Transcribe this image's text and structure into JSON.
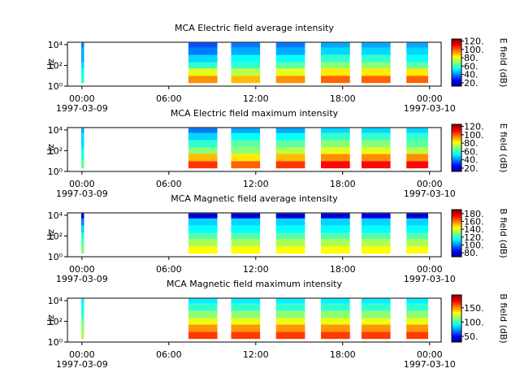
{
  "chart_data": [
    {
      "type": "spectrogram",
      "title": "MCA  Electric field average intensity",
      "ylabel": "Hz",
      "colorbar_label": "E field (dB)",
      "xlim": [
        -1,
        24.8
      ],
      "xticks": [
        {
          "value": 0,
          "label": "00:00"
        },
        {
          "value": 6,
          "label": "06:00"
        },
        {
          "value": 12,
          "label": "12:00"
        },
        {
          "value": 18,
          "label": "18:00"
        },
        {
          "value": 24,
          "label": "00:00"
        }
      ],
      "x_dates": [
        {
          "value": 0,
          "label": "1997-03-09"
        },
        {
          "value": 24,
          "label": "1997-03-10"
        }
      ],
      "log_y": true,
      "ylim": [
        1,
        17000
      ],
      "yticks": [
        {
          "value": 1,
          "label": "10⁰"
        },
        {
          "value": 100,
          "label": "10²"
        },
        {
          "value": 10000,
          "label": "10⁴"
        }
      ],
      "clim": [
        12,
        125
      ],
      "cticks": [
        {
          "value": 20,
          "label": "20."
        },
        {
          "value": 40,
          "label": "40."
        },
        {
          "value": 60,
          "label": "60."
        },
        {
          "value": 80,
          "label": "80."
        },
        {
          "value": 100,
          "label": "100."
        },
        {
          "value": 120,
          "label": "120."
        }
      ],
      "freq_edges": [
        2,
        10,
        50,
        200,
        1000,
        5000,
        15000
      ],
      "segments": [
        [
          -0.05,
          0.15
        ],
        [
          7.35,
          9.35
        ],
        [
          10.3,
          12.3
        ],
        [
          13.4,
          15.4
        ],
        [
          16.5,
          18.5
        ],
        [
          19.3,
          21.3
        ],
        [
          22.4,
          23.9
        ]
      ],
      "values": [
        [
          60,
          55,
          50,
          45,
          45,
          40
        ],
        [
          95,
          80,
          60,
          50,
          40,
          35
        ],
        [
          90,
          75,
          60,
          55,
          45,
          40
        ],
        [
          95,
          80,
          65,
          55,
          45,
          40
        ],
        [
          100,
          85,
          70,
          60,
          50,
          45
        ],
        [
          100,
          85,
          70,
          60,
          50,
          45
        ],
        [
          100,
          85,
          65,
          55,
          50,
          45
        ]
      ]
    },
    {
      "type": "spectrogram",
      "title": "MCA  Electric field maximum intensity",
      "ylabel": "Hz",
      "colorbar_label": "E field (dB)",
      "xlim": [
        -1,
        24.8
      ],
      "xticks": [
        {
          "value": 0,
          "label": "00:00"
        },
        {
          "value": 6,
          "label": "06:00"
        },
        {
          "value": 12,
          "label": "12:00"
        },
        {
          "value": 18,
          "label": "18:00"
        },
        {
          "value": 24,
          "label": "00:00"
        }
      ],
      "x_dates": [
        {
          "value": 0,
          "label": "1997-03-09"
        },
        {
          "value": 24,
          "label": "1997-03-10"
        }
      ],
      "log_y": true,
      "ylim": [
        1,
        17000
      ],
      "yticks": [
        {
          "value": 1,
          "label": "10⁰"
        },
        {
          "value": 100,
          "label": "10²"
        },
        {
          "value": 10000,
          "label": "10⁴"
        }
      ],
      "clim": [
        12,
        125
      ],
      "cticks": [
        {
          "value": 20,
          "label": "20."
        },
        {
          "value": 40,
          "label": "40."
        },
        {
          "value": 60,
          "label": "60."
        },
        {
          "value": 80,
          "label": "80."
        },
        {
          "value": 100,
          "label": "100."
        },
        {
          "value": 120,
          "label": "120."
        }
      ],
      "freq_edges": [
        2,
        10,
        50,
        200,
        1000,
        5000,
        15000
      ],
      "segments": [
        [
          -0.05,
          0.15
        ],
        [
          7.35,
          9.35
        ],
        [
          10.3,
          12.3
        ],
        [
          13.4,
          15.4
        ],
        [
          16.5,
          18.5
        ],
        [
          19.3,
          21.3
        ],
        [
          22.4,
          23.9
        ]
      ],
      "values": [
        [
          65,
          60,
          55,
          50,
          50,
          45
        ],
        [
          105,
          90,
          70,
          60,
          50,
          40
        ],
        [
          100,
          85,
          70,
          65,
          55,
          45
        ],
        [
          105,
          90,
          75,
          65,
          55,
          45
        ],
        [
          110,
          95,
          80,
          70,
          60,
          50
        ],
        [
          110,
          95,
          80,
          70,
          60,
          50
        ],
        [
          110,
          95,
          75,
          65,
          60,
          50
        ]
      ]
    },
    {
      "type": "spectrogram",
      "title": "MCA  Magnetic field average intensity",
      "ylabel": "Hz",
      "colorbar_label": "B field (dB)",
      "xlim": [
        -1,
        24.8
      ],
      "xticks": [
        {
          "value": 0,
          "label": "00:00"
        },
        {
          "value": 6,
          "label": "06:00"
        },
        {
          "value": 12,
          "label": "12:00"
        },
        {
          "value": 18,
          "label": "18:00"
        },
        {
          "value": 24,
          "label": "00:00"
        }
      ],
      "x_dates": [
        {
          "value": 0,
          "label": "1997-03-09"
        },
        {
          "value": 24,
          "label": "1997-03-10"
        }
      ],
      "log_y": true,
      "ylim": [
        1,
        17000
      ],
      "yticks": [
        {
          "value": 1,
          "label": "10⁰"
        },
        {
          "value": 100,
          "label": "10²"
        },
        {
          "value": 10000,
          "label": "10⁴"
        }
      ],
      "clim": [
        70,
        190
      ],
      "cticks": [
        {
          "value": 80,
          "label": "80."
        },
        {
          "value": 100,
          "label": "100."
        },
        {
          "value": 120,
          "label": "120."
        },
        {
          "value": 140,
          "label": "140."
        },
        {
          "value": 160,
          "label": "160."
        },
        {
          "value": 180,
          "label": "180."
        }
      ],
      "freq_edges": [
        2,
        10,
        50,
        200,
        1000,
        5000,
        15000
      ],
      "segments": [
        [
          -0.05,
          0.15
        ],
        [
          7.35,
          9.35
        ],
        [
          10.3,
          12.3
        ],
        [
          13.4,
          15.4
        ],
        [
          16.5,
          18.5
        ],
        [
          19.3,
          21.3
        ],
        [
          22.4,
          23.9
        ]
      ],
      "values": [
        [
          130,
          125,
          120,
          110,
          100,
          80
        ],
        [
          145,
          135,
          125,
          115,
          110,
          80
        ],
        [
          145,
          135,
          125,
          115,
          110,
          80
        ],
        [
          145,
          135,
          125,
          115,
          110,
          80
        ],
        [
          145,
          135,
          125,
          115,
          110,
          80
        ],
        [
          145,
          135,
          125,
          115,
          110,
          82
        ],
        [
          145,
          135,
          125,
          115,
          110,
          80
        ]
      ]
    },
    {
      "type": "spectrogram",
      "title": "MCA  Magnetic field maximum intensity",
      "ylabel": "Hz",
      "colorbar_label": "B field (dB)",
      "xlim": [
        -1,
        24.8
      ],
      "xticks": [
        {
          "value": 0,
          "label": "00:00"
        },
        {
          "value": 6,
          "label": "06:00"
        },
        {
          "value": 12,
          "label": "12:00"
        },
        {
          "value": 18,
          "label": "18:00"
        },
        {
          "value": 24,
          "label": "00:00"
        }
      ],
      "x_dates": [
        {
          "value": 0,
          "label": "1997-03-09"
        },
        {
          "value": 24,
          "label": "1997-03-10"
        }
      ],
      "log_y": true,
      "ylim": [
        1,
        17000
      ],
      "yticks": [
        {
          "value": 1,
          "label": "10⁰"
        },
        {
          "value": 100,
          "label": "10²"
        },
        {
          "value": 10000,
          "label": "10⁴"
        }
      ],
      "clim": [
        30,
        195
      ],
      "cticks": [
        {
          "value": 50,
          "label": "50."
        },
        {
          "value": 100,
          "label": "100."
        },
        {
          "value": 150,
          "label": "150."
        }
      ],
      "freq_edges": [
        2,
        10,
        50,
        200,
        1000,
        5000,
        15000
      ],
      "segments": [
        [
          -0.05,
          0.15
        ],
        [
          7.35,
          9.35
        ],
        [
          10.3,
          12.3
        ],
        [
          13.4,
          15.4
        ],
        [
          16.5,
          18.5
        ],
        [
          19.3,
          21.3
        ],
        [
          22.4,
          23.9
        ]
      ],
      "values": [
        [
          120,
          115,
          110,
          100,
          95,
          90
        ],
        [
          165,
          150,
          130,
          115,
          100,
          90
        ],
        [
          165,
          150,
          130,
          115,
          100,
          90
        ],
        [
          165,
          150,
          130,
          115,
          100,
          90
        ],
        [
          165,
          150,
          130,
          115,
          100,
          90
        ],
        [
          165,
          150,
          130,
          115,
          100,
          90
        ],
        [
          165,
          150,
          130,
          115,
          100,
          90
        ]
      ]
    }
  ]
}
